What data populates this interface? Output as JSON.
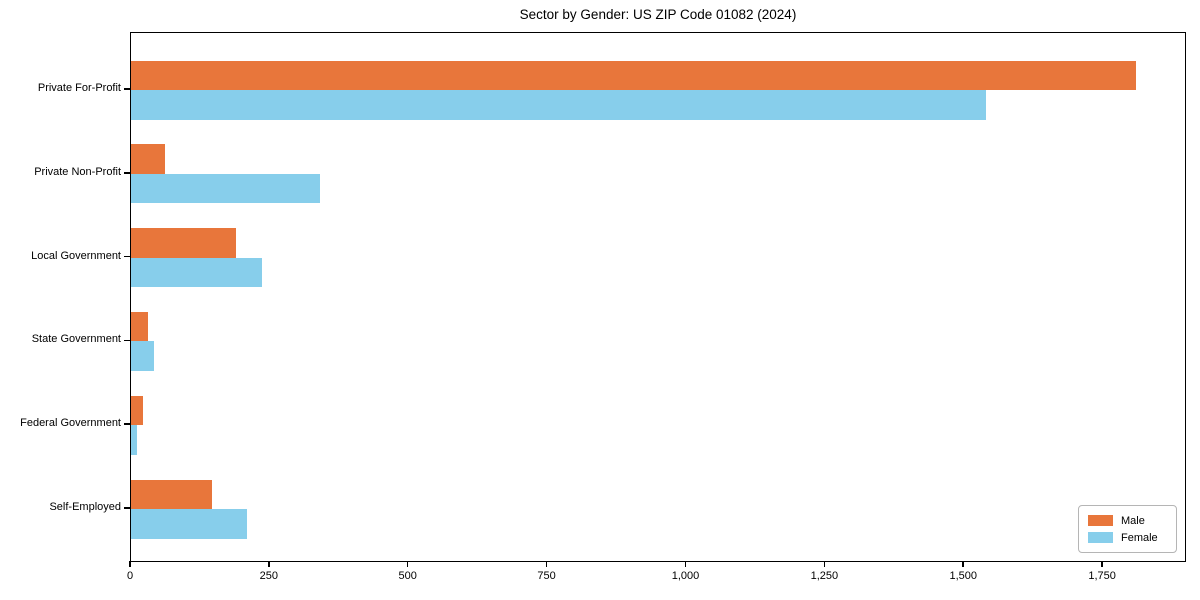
{
  "chart_data": {
    "type": "bar",
    "orientation": "horizontal",
    "title": "Sector by Gender: US ZIP Code 01082 (2024)",
    "categories": [
      "Private For-Profit",
      "Private Non-Profit",
      "Local Government",
      "State Government",
      "Federal Government",
      "Self-Employed"
    ],
    "series": [
      {
        "name": "Male",
        "color": "#e8763b",
        "values": [
          1810,
          62,
          189,
          31,
          22,
          145
        ]
      },
      {
        "name": "Female",
        "color": "#87ceeb",
        "values": [
          1540,
          340,
          235,
          42,
          10,
          208
        ]
      }
    ],
    "xlim": [
      0,
      1901
    ],
    "xticks": [
      0,
      250,
      500,
      750,
      1000,
      1250,
      1500,
      1750
    ],
    "xtick_labels": [
      "0",
      "250",
      "500",
      "750",
      "1,000",
      "1,250",
      "1,500",
      "1,750"
    ],
    "xlabel": "",
    "ylabel": "",
    "grid": false,
    "legend_position": "lower right",
    "colors": {
      "axis": "#000000",
      "background": "#ffffff",
      "legend_border": "#b5b5b5"
    }
  }
}
